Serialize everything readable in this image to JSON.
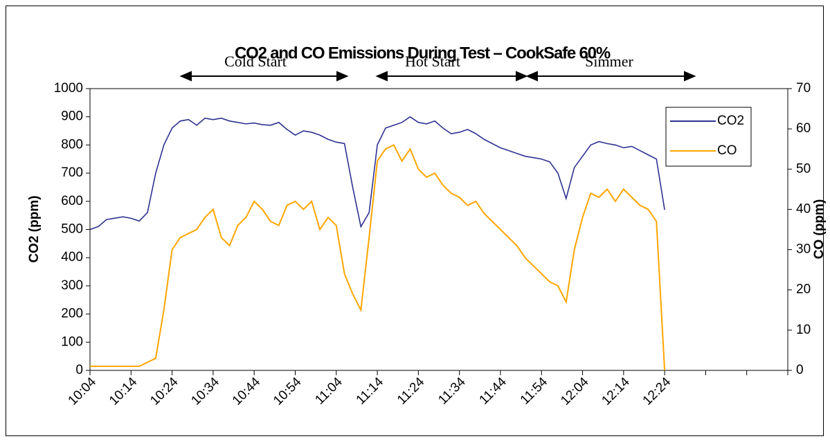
{
  "chart_data": {
    "type": "line",
    "title": "CO2 and CO Emissions During Test – CookSafe 60%",
    "annotations": [
      "Cold Start",
      "Hot Start",
      "Simmer"
    ],
    "ylabel": "CO2 (ppm)",
    "y2label": "CO (ppm)",
    "x": [
      "10:04",
      "10:06",
      "10:08",
      "10:10",
      "10:12",
      "10:14",
      "10:16",
      "10:18",
      "10:20",
      "10:22",
      "10:24",
      "10:26",
      "10:28",
      "10:30",
      "10:32",
      "10:34",
      "10:36",
      "10:38",
      "10:40",
      "10:42",
      "10:44",
      "10:46",
      "10:48",
      "10:50",
      "10:52",
      "10:54",
      "10:56",
      "10:58",
      "11:00",
      "11:02",
      "11:04",
      "11:06",
      "11:08",
      "11:10",
      "11:12",
      "11:14",
      "11:16",
      "11:18",
      "11:20",
      "11:22",
      "11:24",
      "11:26",
      "11:28",
      "11:30",
      "11:32",
      "11:34",
      "11:36",
      "11:38",
      "11:40",
      "11:42",
      "11:44",
      "11:46",
      "11:48",
      "11:50",
      "11:52",
      "11:54",
      "11:56",
      "11:58",
      "12:00",
      "12:02",
      "12:04",
      "12:06",
      "12:08",
      "12:10",
      "12:12",
      "12:14",
      "12:16",
      "12:18",
      "12:20",
      "12:22",
      "12:24"
    ],
    "series": [
      {
        "name": "CO2",
        "color": "#2e3192",
        "values": [
          500,
          510,
          535,
          540,
          545,
          540,
          530,
          560,
          700,
          800,
          860,
          885,
          890,
          870,
          895,
          890,
          895,
          885,
          880,
          875,
          878,
          872,
          870,
          880,
          855,
          835,
          850,
          845,
          835,
          820,
          810,
          805,
          650,
          510,
          560,
          800,
          860,
          870,
          880,
          900,
          880,
          875,
          885,
          860,
          840,
          845,
          855,
          840,
          820,
          805,
          790,
          780,
          770,
          760,
          755,
          750,
          740,
          700,
          610,
          720,
          760,
          800,
          812,
          805,
          800,
          790,
          795,
          780,
          765,
          750,
          570
        ]
      },
      {
        "name": "CO",
        "color": "#ffa500",
        "axis": "y2",
        "values": [
          1,
          1,
          1,
          1,
          1,
          1,
          1,
          2,
          3,
          15,
          30,
          33,
          34,
          35,
          38,
          40,
          33,
          31,
          36,
          38,
          42,
          40,
          37,
          36,
          41,
          42,
          40,
          42,
          35,
          38,
          36,
          24,
          19,
          15,
          33,
          52,
          55,
          56,
          52,
          55,
          50,
          48,
          49,
          46,
          44,
          43,
          41,
          42,
          39,
          37,
          35,
          33,
          31,
          28,
          26,
          24,
          22,
          21,
          17,
          30,
          38,
          44,
          43,
          45,
          42,
          45,
          43,
          41,
          40,
          37,
          0
        ]
      }
    ],
    "xlim": [
      "10:04",
      "12:54"
    ],
    "xticks": [
      "10:04",
      "10:14",
      "10:24",
      "10:34",
      "10:44",
      "10:54",
      "11:04",
      "11:14",
      "11:24",
      "11:34",
      "11:44",
      "11:54",
      "12:04",
      "12:14",
      "12:24",
      {
        "value": "12:34",
        "label": null
      },
      {
        "value": "12:44",
        "label": null
      },
      {
        "value": "12:54",
        "label": null
      }
    ],
    "ylim": [
      0,
      1000
    ],
    "yticks": [
      0,
      100,
      200,
      300,
      400,
      500,
      600,
      700,
      800,
      900,
      1000
    ],
    "y2lim": [
      0,
      70
    ],
    "y2ticks": [
      0,
      10,
      20,
      30,
      40,
      50,
      60,
      70
    ],
    "legend": "upper right"
  }
}
